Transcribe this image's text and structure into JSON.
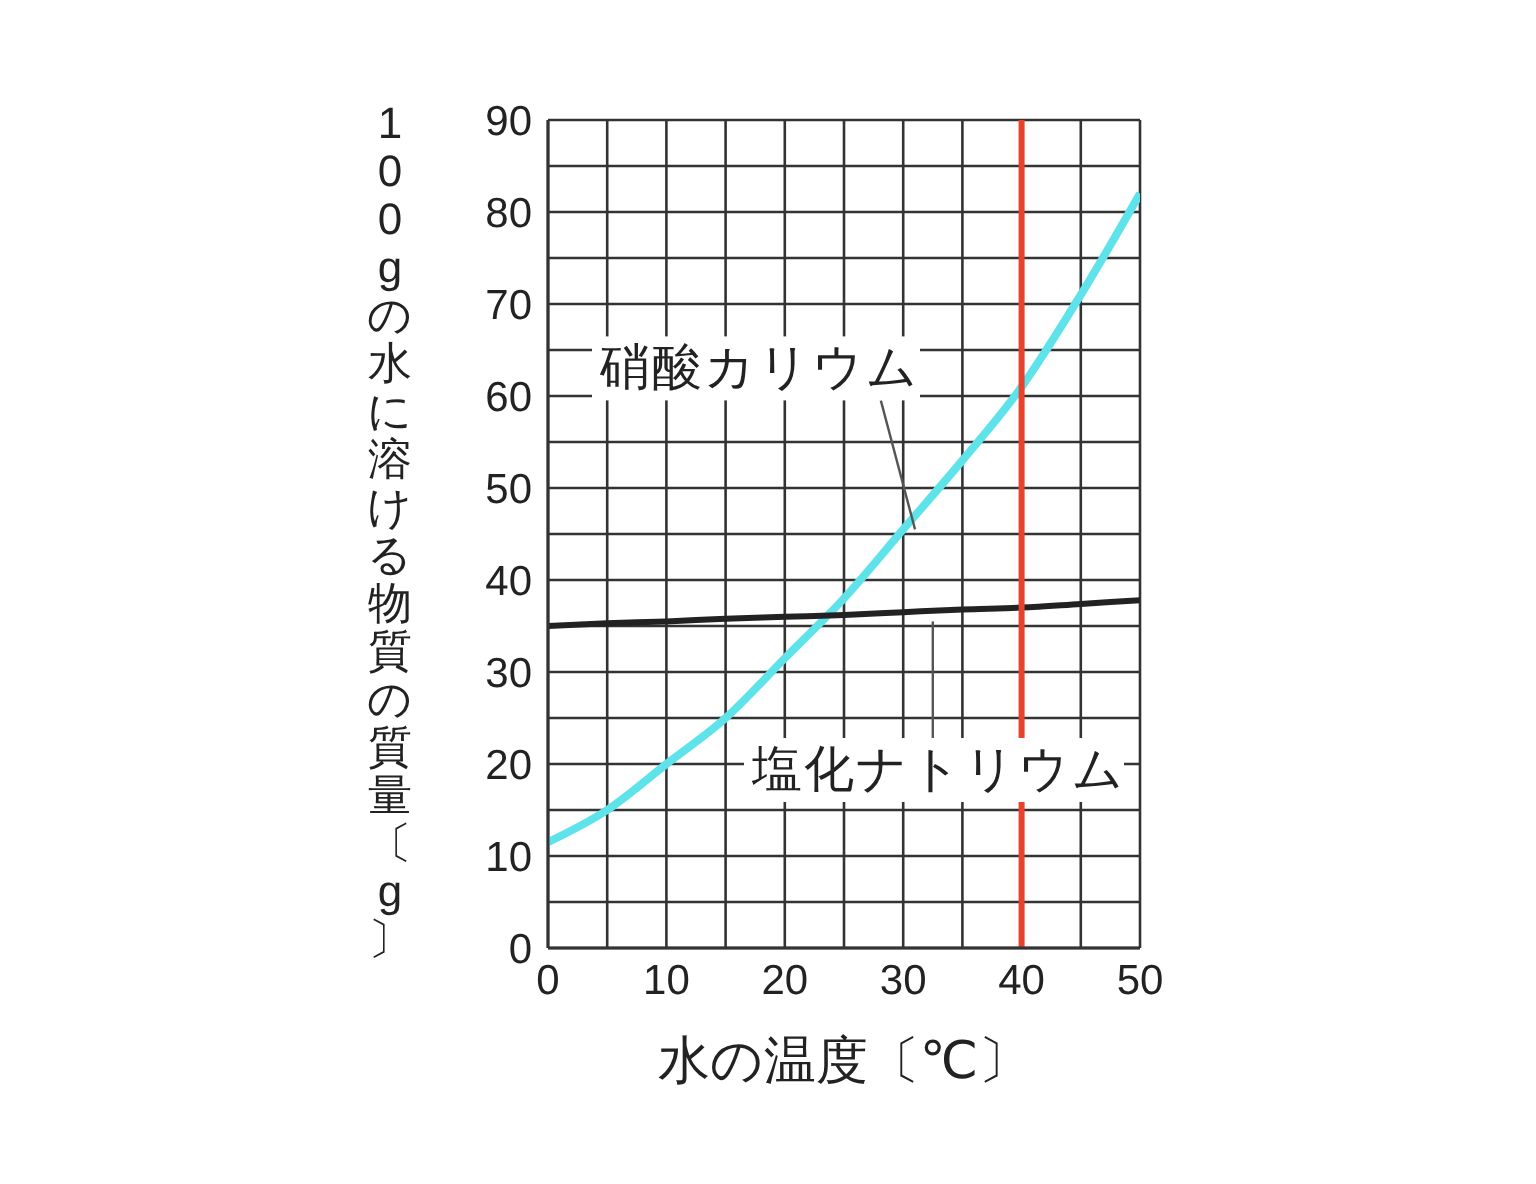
{
  "chart_data": {
    "type": "line",
    "xlabel": "水の温度〔℃〕",
    "ylabel": "100gの水に溶ける物質の質量〔g〕",
    "x": [
      0,
      5,
      10,
      15,
      20,
      25,
      30,
      35,
      40,
      45,
      50
    ],
    "series": [
      {
        "name": "硝酸カリウム",
        "color": "#5fe3ea",
        "values": [
          11.5,
          15,
          20,
          25,
          31.5,
          38,
          45.5,
          53,
          61,
          71,
          82
        ]
      },
      {
        "name": "塩化ナトリウム",
        "color": "#222222",
        "values": [
          35,
          35.3,
          35.5,
          35.8,
          36,
          36.2,
          36.5,
          36.8,
          37,
          37.4,
          37.8
        ]
      }
    ],
    "xlim": [
      0,
      50
    ],
    "ylim": [
      0,
      90
    ],
    "xticks": [
      0,
      {
        "value": 5,
        "label": null
      },
      10,
      {
        "value": 15,
        "label": null
      },
      20,
      {
        "value": 25,
        "label": null
      },
      30,
      {
        "value": 35,
        "label": null
      },
      40,
      {
        "value": 45,
        "label": null
      },
      50
    ],
    "yticks": [
      0,
      {
        "value": 5,
        "label": null
      },
      10,
      {
        "value": 15,
        "label": null
      },
      20,
      {
        "value": 25,
        "label": null
      },
      30,
      {
        "value": 35,
        "label": null
      },
      40,
      {
        "value": 45,
        "label": null
      },
      50,
      {
        "value": 55,
        "label": null
      },
      60,
      {
        "value": 65,
        "label": null
      },
      70,
      {
        "value": 75,
        "label": null
      },
      80,
      {
        "value": 85,
        "label": null
      },
      90
    ],
    "grid": true,
    "ref_lines": [
      {
        "axis": "x",
        "value": 40,
        "color": "#e8412c"
      }
    ]
  }
}
